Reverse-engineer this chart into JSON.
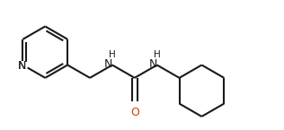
{
  "background_color": "#ffffff",
  "line_color": "#1a1a1a",
  "nitrogen_color": "#1a1a1a",
  "oxygen_color": "#cc4400",
  "line_width": 1.5,
  "font_size": 8.5,
  "fig_width": 3.16,
  "fig_height": 1.45,
  "dpi": 100,
  "xlim": [
    0.0,
    10.5
  ],
  "ylim": [
    -1.5,
    3.5
  ]
}
